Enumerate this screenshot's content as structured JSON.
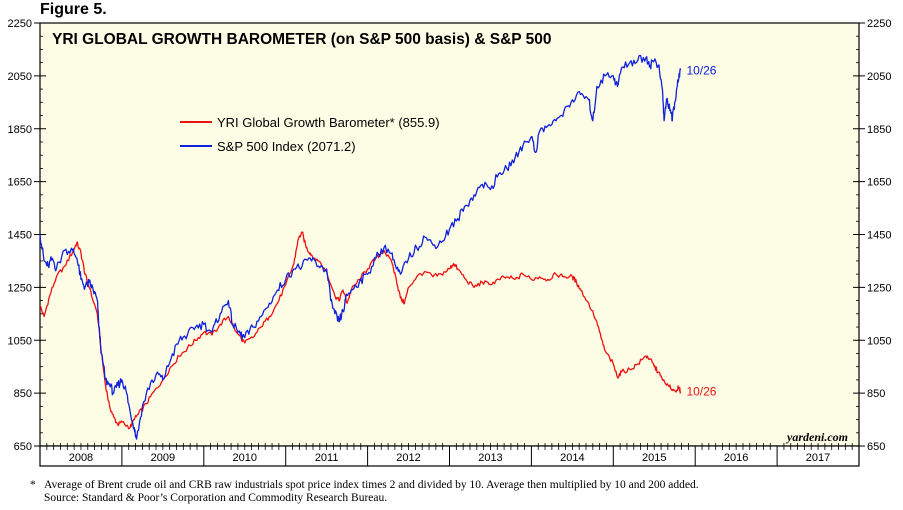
{
  "figure_label": "Figure 5.",
  "chart_data": {
    "type": "line",
    "title": "YRI GLOBAL GROWTH BAROMETER (on S&P 500 basis) & S&P 500",
    "ylim": [
      650,
      2250
    ],
    "y_ticks": [
      "650",
      "850",
      "1050",
      "1250",
      "1450",
      "1650",
      "1850",
      "2050",
      "2250"
    ],
    "x_range": [
      2008.0,
      2018.0
    ],
    "x_tick_labels": [
      "2008",
      "2009",
      "2010",
      "2011",
      "2012",
      "2013",
      "2014",
      "2015",
      "2016",
      "2017"
    ],
    "grid": false,
    "background": "#fdfde6",
    "legend_position": "upper-left",
    "series": [
      {
        "name": "YRI Global Growth Barometer* (855.9)",
        "color": "#ee1111",
        "end_label": "10/26",
        "points": [
          [
            2008.0,
            1180
          ],
          [
            2008.05,
            1140
          ],
          [
            2008.12,
            1220
          ],
          [
            2008.2,
            1290
          ],
          [
            2008.3,
            1330
          ],
          [
            2008.4,
            1385
          ],
          [
            2008.45,
            1420
          ],
          [
            2008.5,
            1380
          ],
          [
            2008.55,
            1300
          ],
          [
            2008.6,
            1250
          ],
          [
            2008.7,
            1150
          ],
          [
            2008.75,
            1000
          ],
          [
            2008.8,
            880
          ],
          [
            2008.85,
            800
          ],
          [
            2008.9,
            760
          ],
          [
            2008.95,
            730
          ],
          [
            2009.0,
            740
          ],
          [
            2009.1,
            720
          ],
          [
            2009.15,
            750
          ],
          [
            2009.2,
            770
          ],
          [
            2009.3,
            810
          ],
          [
            2009.4,
            860
          ],
          [
            2009.5,
            900
          ],
          [
            2009.6,
            950
          ],
          [
            2009.7,
            990
          ],
          [
            2009.8,
            1020
          ],
          [
            2009.9,
            1050
          ],
          [
            2010.0,
            1080
          ],
          [
            2010.1,
            1070
          ],
          [
            2010.2,
            1110
          ],
          [
            2010.3,
            1140
          ],
          [
            2010.4,
            1080
          ],
          [
            2010.5,
            1040
          ],
          [
            2010.6,
            1060
          ],
          [
            2010.7,
            1100
          ],
          [
            2010.8,
            1140
          ],
          [
            2010.9,
            1190
          ],
          [
            2011.0,
            1260
          ],
          [
            2011.1,
            1340
          ],
          [
            2011.15,
            1430
          ],
          [
            2011.2,
            1460
          ],
          [
            2011.25,
            1400
          ],
          [
            2011.3,
            1380
          ],
          [
            2011.35,
            1360
          ],
          [
            2011.4,
            1350
          ],
          [
            2011.5,
            1310
          ],
          [
            2011.6,
            1220
          ],
          [
            2011.65,
            1200
          ],
          [
            2011.7,
            1240
          ],
          [
            2011.75,
            1190
          ],
          [
            2011.8,
            1240
          ],
          [
            2011.9,
            1280
          ],
          [
            2012.0,
            1320
          ],
          [
            2012.1,
            1360
          ],
          [
            2012.2,
            1390
          ],
          [
            2012.3,
            1340
          ],
          [
            2012.35,
            1280
          ],
          [
            2012.4,
            1210
          ],
          [
            2012.45,
            1190
          ],
          [
            2012.5,
            1250
          ],
          [
            2012.6,
            1290
          ],
          [
            2012.7,
            1310
          ],
          [
            2012.8,
            1290
          ],
          [
            2012.9,
            1300
          ],
          [
            2013.0,
            1320
          ],
          [
            2013.05,
            1340
          ],
          [
            2013.1,
            1320
          ],
          [
            2013.2,
            1280
          ],
          [
            2013.3,
            1250
          ],
          [
            2013.4,
            1270
          ],
          [
            2013.5,
            1260
          ],
          [
            2013.6,
            1280
          ],
          [
            2013.7,
            1290
          ],
          [
            2013.8,
            1280
          ],
          [
            2013.9,
            1300
          ],
          [
            2014.0,
            1280
          ],
          [
            2014.1,
            1290
          ],
          [
            2014.2,
            1280
          ],
          [
            2014.3,
            1300
          ],
          [
            2014.4,
            1290
          ],
          [
            2014.5,
            1290
          ],
          [
            2014.55,
            1270
          ],
          [
            2014.6,
            1240
          ],
          [
            2014.7,
            1190
          ],
          [
            2014.8,
            1120
          ],
          [
            2014.85,
            1060
          ],
          [
            2014.9,
            1010
          ],
          [
            2015.0,
            960
          ],
          [
            2015.05,
            910
          ],
          [
            2015.1,
            930
          ],
          [
            2015.2,
            940
          ],
          [
            2015.3,
            960
          ],
          [
            2015.4,
            990
          ],
          [
            2015.45,
            980
          ],
          [
            2015.5,
            950
          ],
          [
            2015.55,
            930
          ],
          [
            2015.6,
            900
          ],
          [
            2015.65,
            880
          ],
          [
            2015.7,
            870
          ],
          [
            2015.75,
            860
          ],
          [
            2015.8,
            870
          ],
          [
            2015.82,
            856
          ]
        ]
      },
      {
        "name": "S&P 500 Index (2071.2)",
        "color": "#1020dd",
        "end_label": "10/26",
        "points": [
          [
            2008.0,
            1450
          ],
          [
            2008.05,
            1350
          ],
          [
            2008.1,
            1330
          ],
          [
            2008.15,
            1360
          ],
          [
            2008.2,
            1320
          ],
          [
            2008.3,
            1390
          ],
          [
            2008.4,
            1390
          ],
          [
            2008.45,
            1360
          ],
          [
            2008.5,
            1280
          ],
          [
            2008.55,
            1250
          ],
          [
            2008.6,
            1270
          ],
          [
            2008.65,
            1240
          ],
          [
            2008.7,
            1200
          ],
          [
            2008.72,
            1100
          ],
          [
            2008.75,
            1000
          ],
          [
            2008.8,
            900
          ],
          [
            2008.85,
            880
          ],
          [
            2008.9,
            850
          ],
          [
            2008.95,
            880
          ],
          [
            2009.0,
            900
          ],
          [
            2009.05,
            860
          ],
          [
            2009.1,
            780
          ],
          [
            2009.15,
            720
          ],
          [
            2009.18,
            676
          ],
          [
            2009.25,
            800
          ],
          [
            2009.35,
            890
          ],
          [
            2009.45,
            920
          ],
          [
            2009.5,
            900
          ],
          [
            2009.6,
            980
          ],
          [
            2009.7,
            1050
          ],
          [
            2009.8,
            1070
          ],
          [
            2009.9,
            1100
          ],
          [
            2010.0,
            1110
          ],
          [
            2010.1,
            1080
          ],
          [
            2010.2,
            1150
          ],
          [
            2010.3,
            1200
          ],
          [
            2010.35,
            1110
          ],
          [
            2010.45,
            1070
          ],
          [
            2010.5,
            1060
          ],
          [
            2010.6,
            1100
          ],
          [
            2010.7,
            1140
          ],
          [
            2010.8,
            1190
          ],
          [
            2010.9,
            1240
          ],
          [
            2011.0,
            1280
          ],
          [
            2011.1,
            1320
          ],
          [
            2011.2,
            1330
          ],
          [
            2011.3,
            1360
          ],
          [
            2011.4,
            1330
          ],
          [
            2011.5,
            1320
          ],
          [
            2011.55,
            1200
          ],
          [
            2011.6,
            1150
          ],
          [
            2011.65,
            1120
          ],
          [
            2011.7,
            1160
          ],
          [
            2011.75,
            1220
          ],
          [
            2011.8,
            1240
          ],
          [
            2011.9,
            1270
          ],
          [
            2012.0,
            1300
          ],
          [
            2012.1,
            1360
          ],
          [
            2012.2,
            1400
          ],
          [
            2012.3,
            1380
          ],
          [
            2012.35,
            1320
          ],
          [
            2012.4,
            1300
          ],
          [
            2012.5,
            1360
          ],
          [
            2012.6,
            1400
          ],
          [
            2012.7,
            1440
          ],
          [
            2012.8,
            1410
          ],
          [
            2012.9,
            1420
          ],
          [
            2013.0,
            1470
          ],
          [
            2013.1,
            1510
          ],
          [
            2013.2,
            1560
          ],
          [
            2013.3,
            1600
          ],
          [
            2013.4,
            1640
          ],
          [
            2013.5,
            1620
          ],
          [
            2013.6,
            1680
          ],
          [
            2013.7,
            1700
          ],
          [
            2013.8,
            1740
          ],
          [
            2013.9,
            1790
          ],
          [
            2014.0,
            1820
          ],
          [
            2014.05,
            1760
          ],
          [
            2014.1,
            1840
          ],
          [
            2014.2,
            1860
          ],
          [
            2014.3,
            1880
          ],
          [
            2014.4,
            1920
          ],
          [
            2014.5,
            1960
          ],
          [
            2014.6,
            1980
          ],
          [
            2014.7,
            1960
          ],
          [
            2014.75,
            1880
          ],
          [
            2014.8,
            2010
          ],
          [
            2014.9,
            2050
          ],
          [
            2015.0,
            2050
          ],
          [
            2015.05,
            2010
          ],
          [
            2015.1,
            2080
          ],
          [
            2015.2,
            2100
          ],
          [
            2015.3,
            2110
          ],
          [
            2015.4,
            2120
          ],
          [
            2015.45,
            2090
          ],
          [
            2015.5,
            2110
          ],
          [
            2015.55,
            2090
          ],
          [
            2015.6,
            2000
          ],
          [
            2015.62,
            1880
          ],
          [
            2015.65,
            1960
          ],
          [
            2015.7,
            1920
          ],
          [
            2015.72,
            1880
          ],
          [
            2015.75,
            1950
          ],
          [
            2015.78,
            2010
          ],
          [
            2015.8,
            2040
          ],
          [
            2015.82,
            2071
          ]
        ]
      }
    ],
    "watermark": "yardeni.com"
  },
  "footnote": {
    "marker": "*",
    "line1": "Average of Brent crude oil and CRB raw industrials spot price index times 2 and divided by 10. Average then multiplied by 10 and 200 added.",
    "line2": "Source: Standard & Poor’s Corporation and Commodity Research Bureau."
  }
}
